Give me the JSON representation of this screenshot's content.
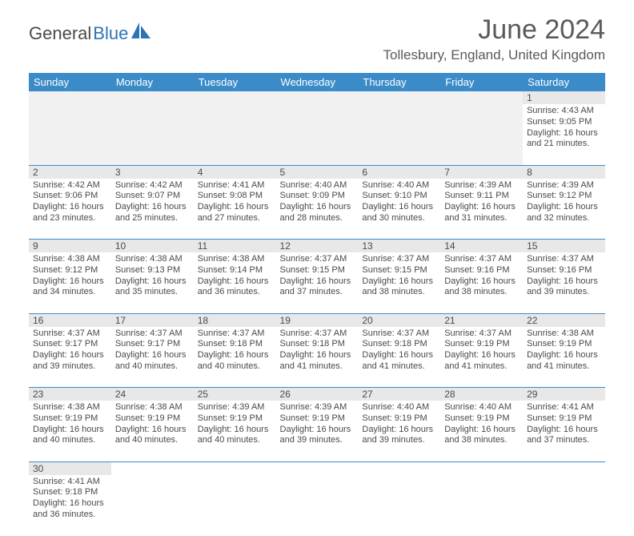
{
  "brand": {
    "part1": "General",
    "part2": "Blue"
  },
  "title": "June 2024",
  "location": "Tollesbury, England, United Kingdom",
  "colors": {
    "header_bg": "#3b8bc9",
    "header_text": "#ffffff",
    "daynum_bg": "#e8e8e8",
    "cell_border": "#3b8bc9",
    "text": "#4a4a4a",
    "brand_blue": "#2e74b5"
  },
  "weekdays": [
    "Sunday",
    "Monday",
    "Tuesday",
    "Wednesday",
    "Thursday",
    "Friday",
    "Saturday"
  ],
  "weeks": [
    [
      null,
      null,
      null,
      null,
      null,
      null,
      {
        "d": "1",
        "sr": "4:43 AM",
        "ss": "9:05 PM",
        "dl": "16 hours and 21 minutes."
      }
    ],
    [
      {
        "d": "2",
        "sr": "4:42 AM",
        "ss": "9:06 PM",
        "dl": "16 hours and 23 minutes."
      },
      {
        "d": "3",
        "sr": "4:42 AM",
        "ss": "9:07 PM",
        "dl": "16 hours and 25 minutes."
      },
      {
        "d": "4",
        "sr": "4:41 AM",
        "ss": "9:08 PM",
        "dl": "16 hours and 27 minutes."
      },
      {
        "d": "5",
        "sr": "4:40 AM",
        "ss": "9:09 PM",
        "dl": "16 hours and 28 minutes."
      },
      {
        "d": "6",
        "sr": "4:40 AM",
        "ss": "9:10 PM",
        "dl": "16 hours and 30 minutes."
      },
      {
        "d": "7",
        "sr": "4:39 AM",
        "ss": "9:11 PM",
        "dl": "16 hours and 31 minutes."
      },
      {
        "d": "8",
        "sr": "4:39 AM",
        "ss": "9:12 PM",
        "dl": "16 hours and 32 minutes."
      }
    ],
    [
      {
        "d": "9",
        "sr": "4:38 AM",
        "ss": "9:12 PM",
        "dl": "16 hours and 34 minutes."
      },
      {
        "d": "10",
        "sr": "4:38 AM",
        "ss": "9:13 PM",
        "dl": "16 hours and 35 minutes."
      },
      {
        "d": "11",
        "sr": "4:38 AM",
        "ss": "9:14 PM",
        "dl": "16 hours and 36 minutes."
      },
      {
        "d": "12",
        "sr": "4:37 AM",
        "ss": "9:15 PM",
        "dl": "16 hours and 37 minutes."
      },
      {
        "d": "13",
        "sr": "4:37 AM",
        "ss": "9:15 PM",
        "dl": "16 hours and 38 minutes."
      },
      {
        "d": "14",
        "sr": "4:37 AM",
        "ss": "9:16 PM",
        "dl": "16 hours and 38 minutes."
      },
      {
        "d": "15",
        "sr": "4:37 AM",
        "ss": "9:16 PM",
        "dl": "16 hours and 39 minutes."
      }
    ],
    [
      {
        "d": "16",
        "sr": "4:37 AM",
        "ss": "9:17 PM",
        "dl": "16 hours and 39 minutes."
      },
      {
        "d": "17",
        "sr": "4:37 AM",
        "ss": "9:17 PM",
        "dl": "16 hours and 40 minutes."
      },
      {
        "d": "18",
        "sr": "4:37 AM",
        "ss": "9:18 PM",
        "dl": "16 hours and 40 minutes."
      },
      {
        "d": "19",
        "sr": "4:37 AM",
        "ss": "9:18 PM",
        "dl": "16 hours and 41 minutes."
      },
      {
        "d": "20",
        "sr": "4:37 AM",
        "ss": "9:18 PM",
        "dl": "16 hours and 41 minutes."
      },
      {
        "d": "21",
        "sr": "4:37 AM",
        "ss": "9:19 PM",
        "dl": "16 hours and 41 minutes."
      },
      {
        "d": "22",
        "sr": "4:38 AM",
        "ss": "9:19 PM",
        "dl": "16 hours and 41 minutes."
      }
    ],
    [
      {
        "d": "23",
        "sr": "4:38 AM",
        "ss": "9:19 PM",
        "dl": "16 hours and 40 minutes."
      },
      {
        "d": "24",
        "sr": "4:38 AM",
        "ss": "9:19 PM",
        "dl": "16 hours and 40 minutes."
      },
      {
        "d": "25",
        "sr": "4:39 AM",
        "ss": "9:19 PM",
        "dl": "16 hours and 40 minutes."
      },
      {
        "d": "26",
        "sr": "4:39 AM",
        "ss": "9:19 PM",
        "dl": "16 hours and 39 minutes."
      },
      {
        "d": "27",
        "sr": "4:40 AM",
        "ss": "9:19 PM",
        "dl": "16 hours and 39 minutes."
      },
      {
        "d": "28",
        "sr": "4:40 AM",
        "ss": "9:19 PM",
        "dl": "16 hours and 38 minutes."
      },
      {
        "d": "29",
        "sr": "4:41 AM",
        "ss": "9:19 PM",
        "dl": "16 hours and 37 minutes."
      }
    ],
    [
      {
        "d": "30",
        "sr": "4:41 AM",
        "ss": "9:18 PM",
        "dl": "16 hours and 36 minutes."
      },
      null,
      null,
      null,
      null,
      null,
      null
    ]
  ],
  "labels": {
    "sunrise": "Sunrise:",
    "sunset": "Sunset:",
    "daylight": "Daylight:"
  }
}
